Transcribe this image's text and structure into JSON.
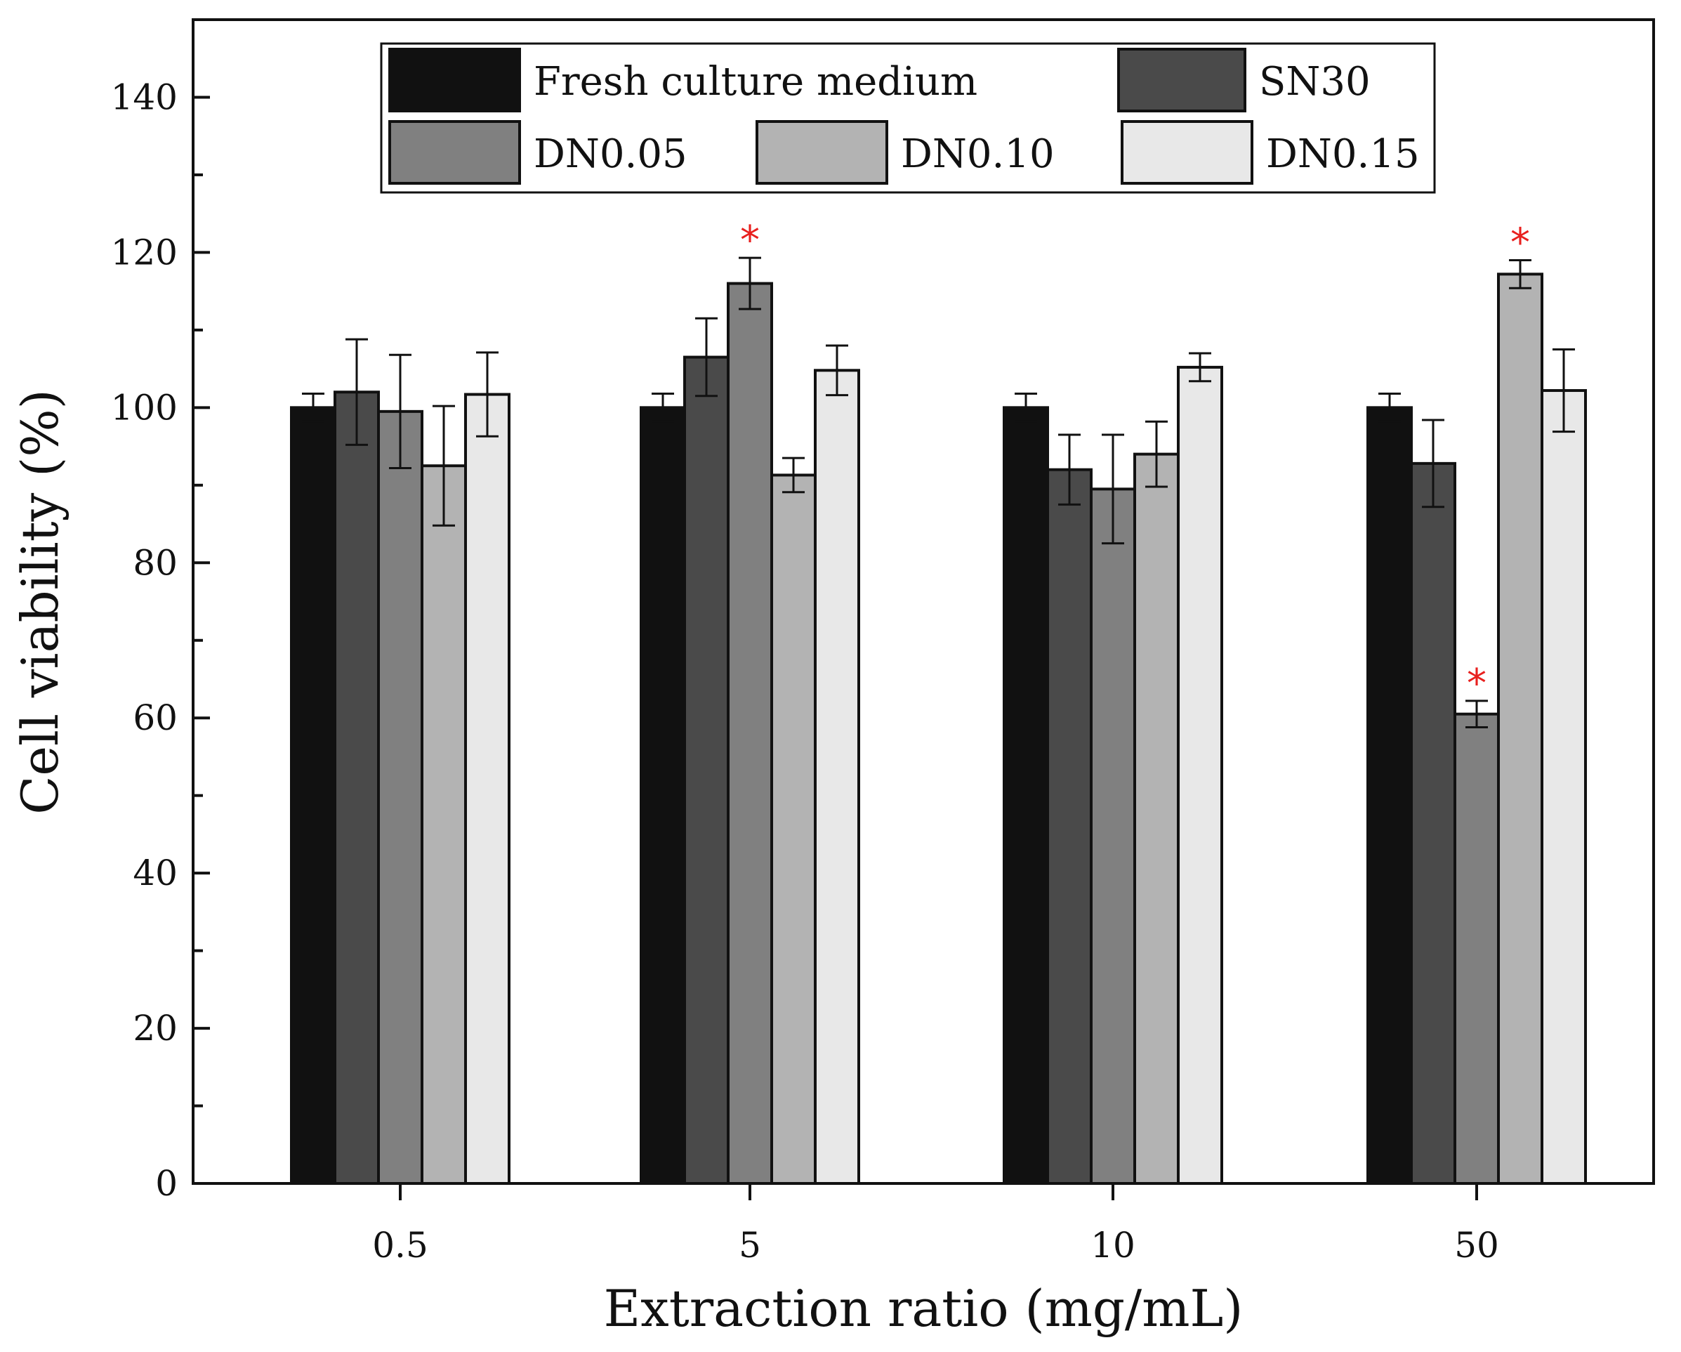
{
  "chart_data": {
    "type": "bar",
    "title": "",
    "xlabel": "Extraction ratio (mg/mL)",
    "ylabel": "Cell viability (%)",
    "ylim": [
      0,
      150
    ],
    "yticks": [
      0,
      20,
      40,
      60,
      80,
      100,
      120,
      140
    ],
    "categories": [
      "0.5",
      "5",
      "10",
      "50"
    ],
    "grid": false,
    "legend_position": "top",
    "series": [
      {
        "name": "Fresh culture medium",
        "color": "#111111",
        "values": [
          100,
          100,
          100,
          100
        ],
        "errors": [
          1.8,
          1.8,
          1.8,
          1.8
        ],
        "significant": [
          false,
          false,
          false,
          false
        ]
      },
      {
        "name": "SN30",
        "color": "#4a4a4a",
        "values": [
          102,
          106.5,
          92,
          92.8
        ],
        "errors": [
          6.8,
          5,
          4.5,
          5.6
        ],
        "significant": [
          false,
          false,
          false,
          false
        ]
      },
      {
        "name": "DN0.05",
        "color": "#808080",
        "values": [
          99.5,
          116,
          89.5,
          60.5
        ],
        "errors": [
          7.3,
          3.3,
          7,
          1.7
        ],
        "significant": [
          false,
          true,
          false,
          true
        ]
      },
      {
        "name": "DN0.10",
        "color": "#b3b3b3",
        "values": [
          92.5,
          91.3,
          94,
          117.2
        ],
        "errors": [
          7.7,
          2.2,
          4.2,
          1.8
        ],
        "significant": [
          false,
          false,
          false,
          true
        ]
      },
      {
        "name": "DN0.15",
        "color": "#e8e8e8",
        "values": [
          101.7,
          104.8,
          105.2,
          102.2
        ],
        "errors": [
          5.4,
          3.2,
          1.8,
          5.3
        ],
        "significant": [
          false,
          false,
          false,
          false
        ]
      }
    ],
    "significance_marker": "*"
  }
}
